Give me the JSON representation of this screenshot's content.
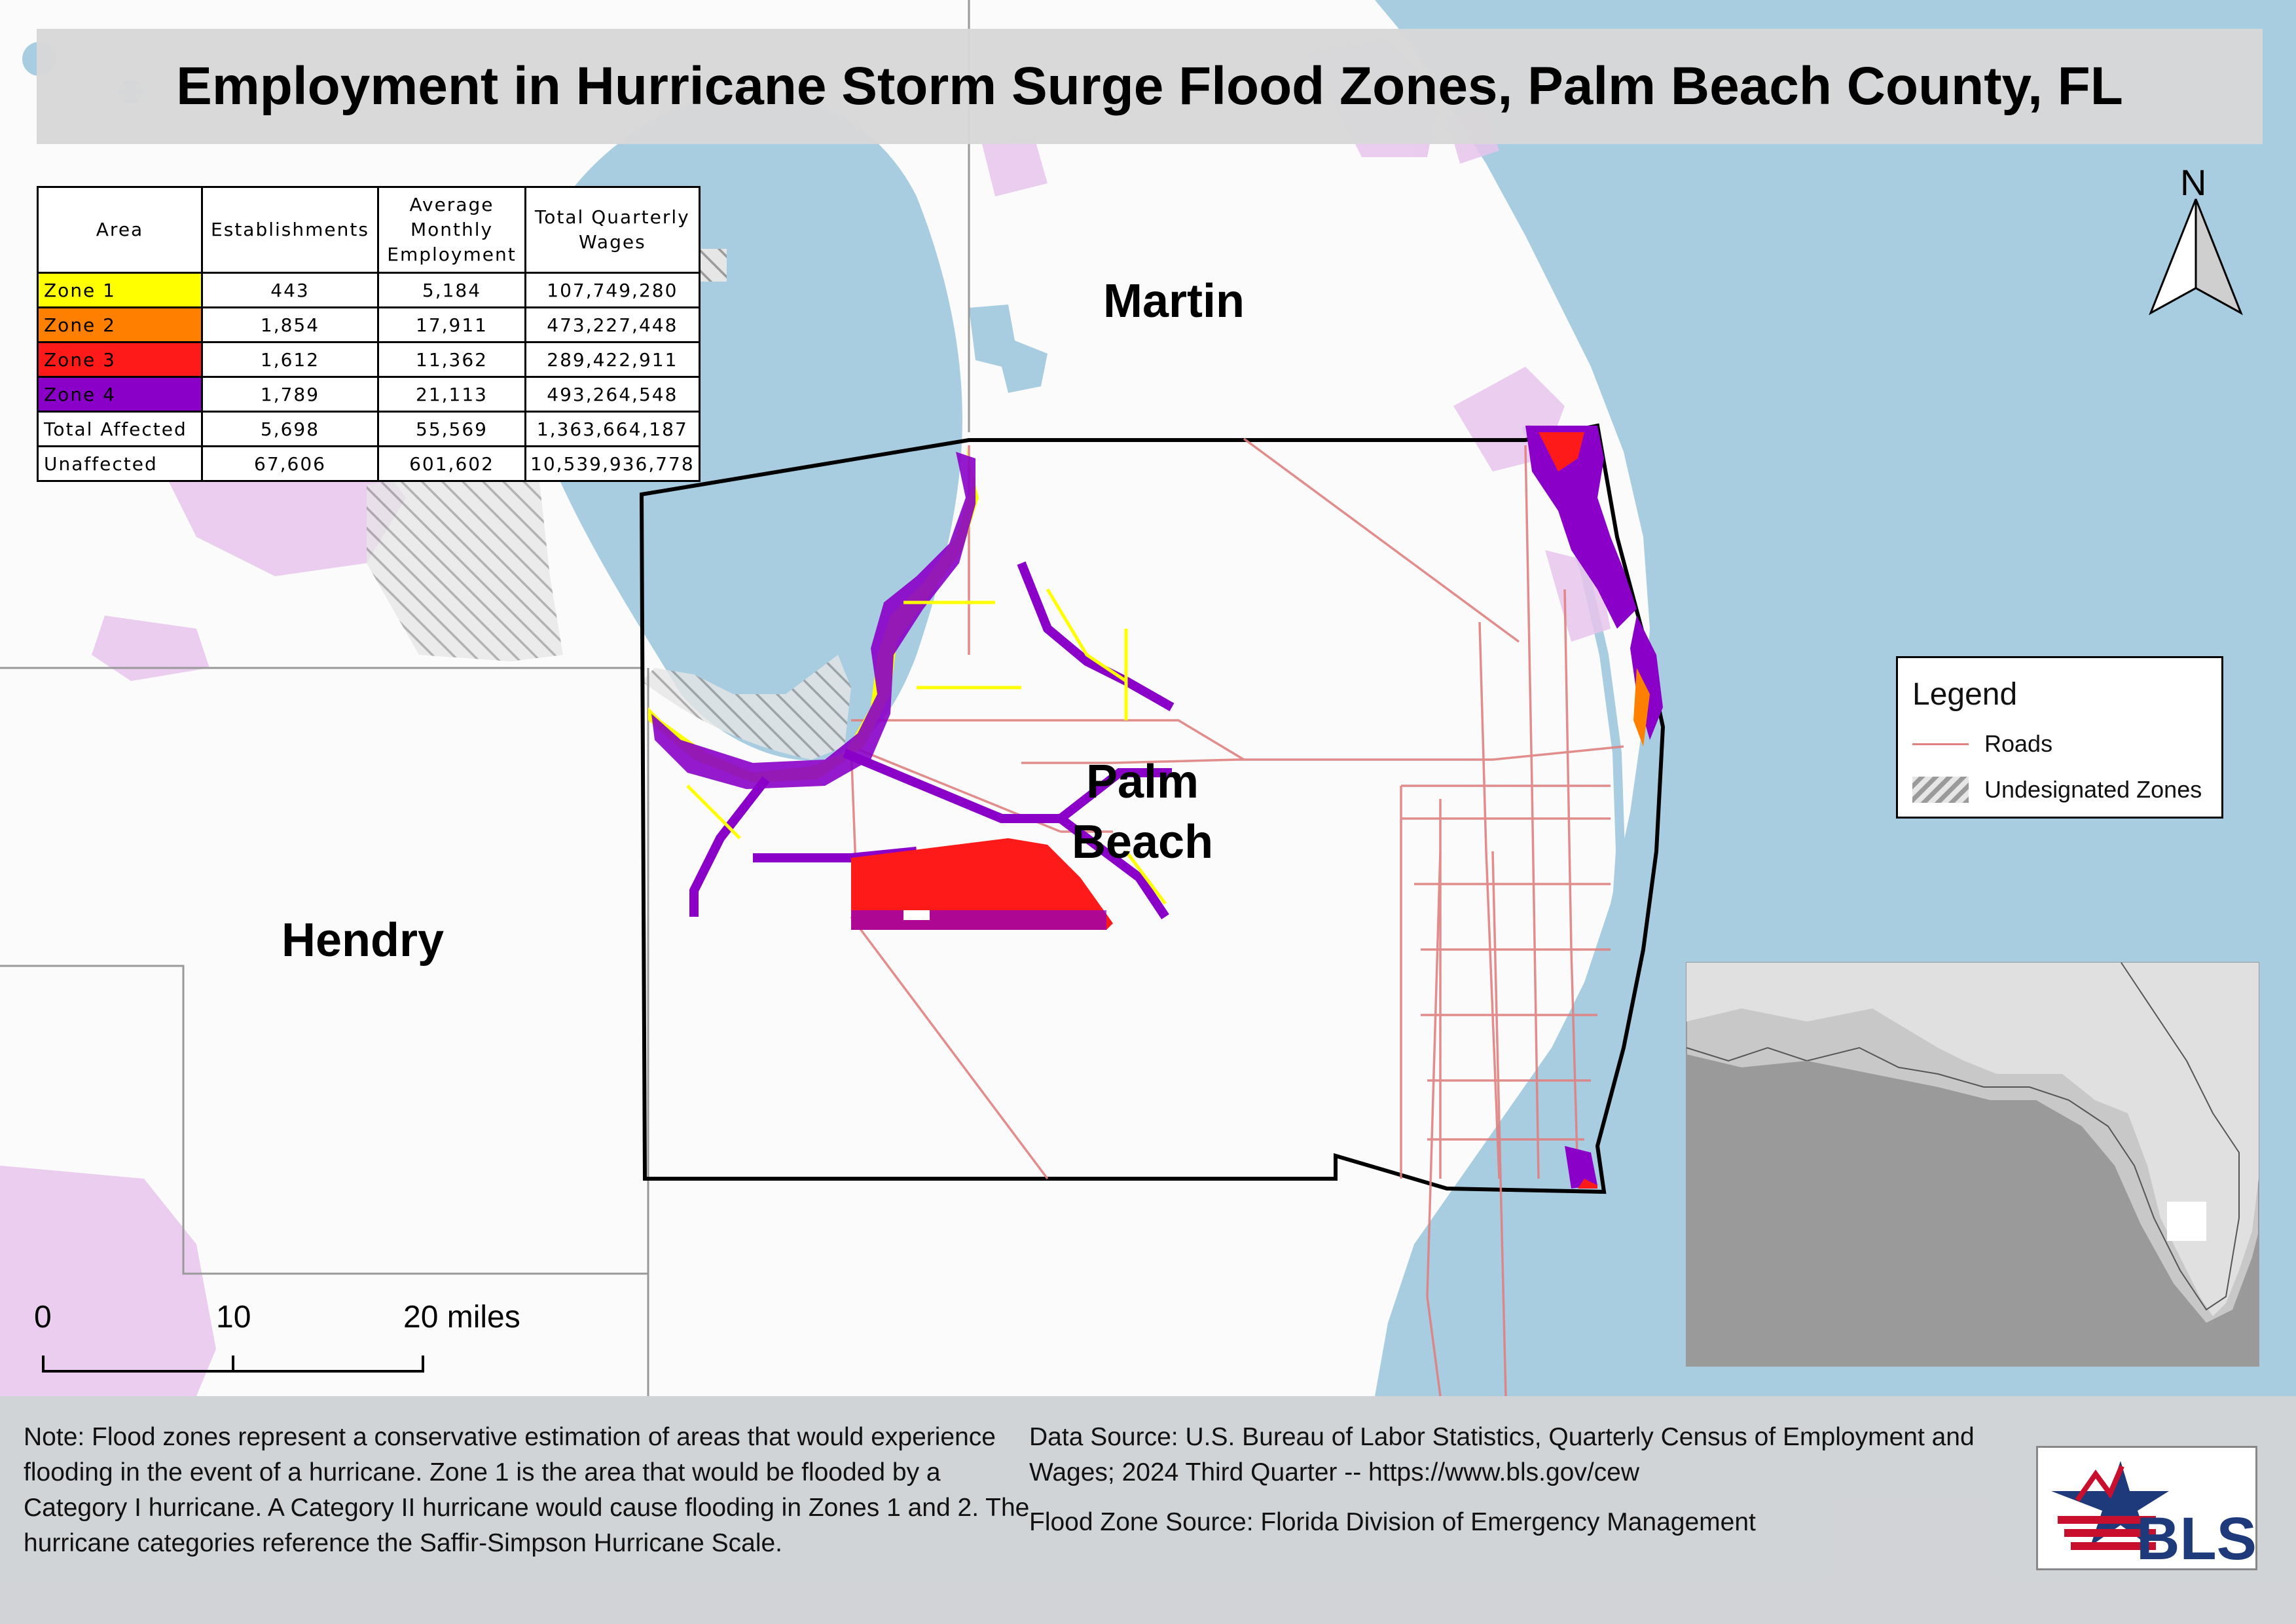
{
  "title": "Employment in Hurricane Storm Surge Flood Zones, Palm Beach County, FL",
  "table": {
    "headers": [
      "Area",
      "Establishments",
      "Average Monthly Employment",
      "Total Quarterly Wages"
    ],
    "rows": [
      {
        "area": "Zone 1",
        "establishments": "443",
        "employment": "5,184",
        "wages": "107,749,280",
        "color": "#ffff00",
        "text_color": "#000000"
      },
      {
        "area": "Zone 2",
        "establishments": "1,854",
        "employment": "17,911",
        "wages": "473,227,448",
        "color": "#ff8000",
        "text_color": "#000000"
      },
      {
        "area": "Zone 3",
        "establishments": "1,612",
        "employment": "11,362",
        "wages": "289,422,911",
        "color": "#ff1a1a",
        "text_color": "#000000"
      },
      {
        "area": "Zone 4",
        "establishments": "1,789",
        "employment": "21,113",
        "wages": "493,264,548",
        "color": "#8a00c8",
        "text_color": "#000000"
      },
      {
        "area": "Total Affected",
        "establishments": "5,698",
        "employment": "55,569",
        "wages": "1,363,664,187",
        "color": "#ffffff",
        "text_color": "#000000"
      },
      {
        "area": "Unaffected",
        "establishments": "67,606",
        "employment": "601,602",
        "wages": "10,539,936,778",
        "color": "#ffffff",
        "text_color": "#000000"
      }
    ]
  },
  "counties": {
    "martin": "Martin",
    "palm_beach": "Palm Beach",
    "hendry": "Hendry"
  },
  "north_arrow": "N",
  "legend": {
    "title": "Legend",
    "roads": "Roads",
    "undesignated": "Undesignated Zones"
  },
  "scale_bar": {
    "tick_0": "0",
    "tick_10": "10",
    "tick_20": "20 miles"
  },
  "notes": {
    "left": "Note: Flood zones represent a conservative estimation of areas that would experience flooding in the event of a hurricane. Zone 1 is the area that would be flooded by a Category I hurricane. A Category II hurricane would cause flooding in Zones 1 and 2. The hurricane categories reference the Saffir-Simpson Hurricane Scale.",
    "data_source": "Data Source: U.S. Bureau of Labor Statistics, Quarterly Census of Employment and Wages; 2024 Third Quarter -- https://www.bls.gov/cew",
    "flood_source": "Flood Zone Source: Florida Division of Emergency Management"
  },
  "logo_text": "BLS",
  "colors": {
    "water": "#a8cde0",
    "road": "#e08080",
    "zone1": "#ffff00",
    "zone2": "#ff8000",
    "zone3": "#ff1a1a",
    "zone4": "#8a00c8",
    "urban": "#e8c4ec"
  }
}
